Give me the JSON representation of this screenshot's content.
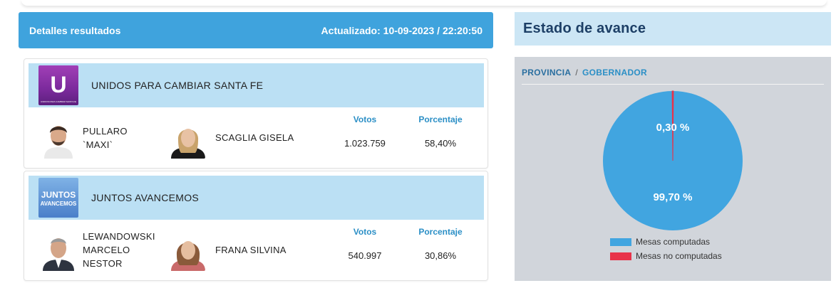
{
  "results": {
    "title": "Detalles resultados",
    "updated": "Actualizado: 10-09-2023 / 22:20:50"
  },
  "columns": {
    "votes": "Votos",
    "percent": "Porcentaje"
  },
  "parties": [
    {
      "name": "UNIDOS PARA CAMBIAR SANTA FE",
      "logo_text": "U",
      "logo_caption": "UNIDOS PARA CAMBIAR SANTA FE",
      "candidate_1": [
        "PULLARO",
        "`MAXI`"
      ],
      "candidate_2": "SCAGLIA GISELA",
      "votes": "1.023.759",
      "percent": "58,40%"
    },
    {
      "name": "JUNTOS AVANCEMOS",
      "logo_text_1": "JUNTOS",
      "logo_text_2": "AVANCEMOS",
      "candidate_1": [
        "LEWANDOWSKI",
        "MARCELO",
        "NESTOR"
      ],
      "candidate_2": "FRANA SILVINA",
      "votes": "540.997",
      "percent": "30,86%"
    }
  ],
  "status": {
    "title": "Estado de avance",
    "breadcrumb": [
      "PROVINCIA",
      "/",
      "GOBERNADOR"
    ],
    "pie_labels": {
      "not_computed": "0,30 %",
      "computed": "99,70 %"
    },
    "legend": [
      "Mesas computadas",
      "Mesas no computadas"
    ],
    "colors": {
      "computed": "#41a5e0",
      "not_computed": "#e8334a"
    }
  },
  "chart_data": {
    "type": "pie",
    "categories": [
      "Mesas computadas",
      "Mesas no computadas"
    ],
    "values": [
      99.7,
      0.3
    ],
    "legend_position": "bottom"
  }
}
